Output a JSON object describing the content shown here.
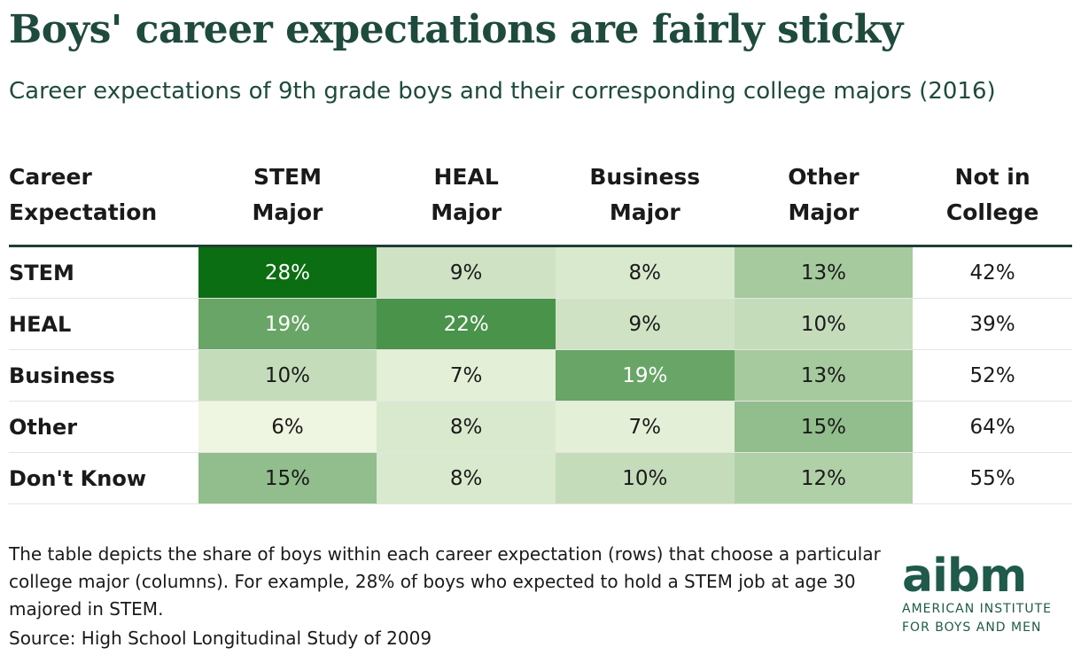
{
  "title": "Boys' career expectations are fairly sticky",
  "subtitle": "Career expectations of 9th grade boys and their corresponding college majors (2016)",
  "header": {
    "row_label": [
      "Career",
      "Expectation"
    ],
    "columns": [
      [
        "STEM",
        "Major"
      ],
      [
        "HEAL",
        "Major"
      ],
      [
        "Business",
        "Major"
      ],
      [
        "Other",
        "Major"
      ],
      [
        "Not in",
        "College"
      ]
    ]
  },
  "chart_data": {
    "type": "heatmap",
    "title": "Boys' career expectations are fairly sticky",
    "subtitle": "Career expectations of 9th grade boys and their corresponding college majors (2016)",
    "row_header": "Career Expectation",
    "rows": [
      "STEM",
      "HEAL",
      "Business",
      "Other",
      "Don't Know"
    ],
    "columns": [
      "STEM Major",
      "HEAL Major",
      "Business Major",
      "Other Major",
      "Not in College"
    ],
    "values": [
      [
        28,
        9,
        8,
        13,
        42
      ],
      [
        19,
        22,
        9,
        10,
        39
      ],
      [
        10,
        7,
        19,
        13,
        52
      ],
      [
        6,
        8,
        7,
        15,
        64
      ],
      [
        15,
        8,
        10,
        12,
        55
      ]
    ],
    "unit": "%",
    "color_scale": {
      "low": "#eef5e0",
      "high": "#0b6e12",
      "min": 6,
      "max": 28
    },
    "shaded_columns": 4
  },
  "footnote": "The table depicts the share of boys within each career expectation (rows) that choose a particular college major (columns). For example, 28% of boys who expected to hold a STEM job at age 30 majored in STEM.",
  "source": "Source: High School Longitudinal Study of 2009",
  "logo": {
    "word": "aibm",
    "line1": "AMERICAN INSTITUTE",
    "line2": "FOR BOYS AND MEN"
  }
}
